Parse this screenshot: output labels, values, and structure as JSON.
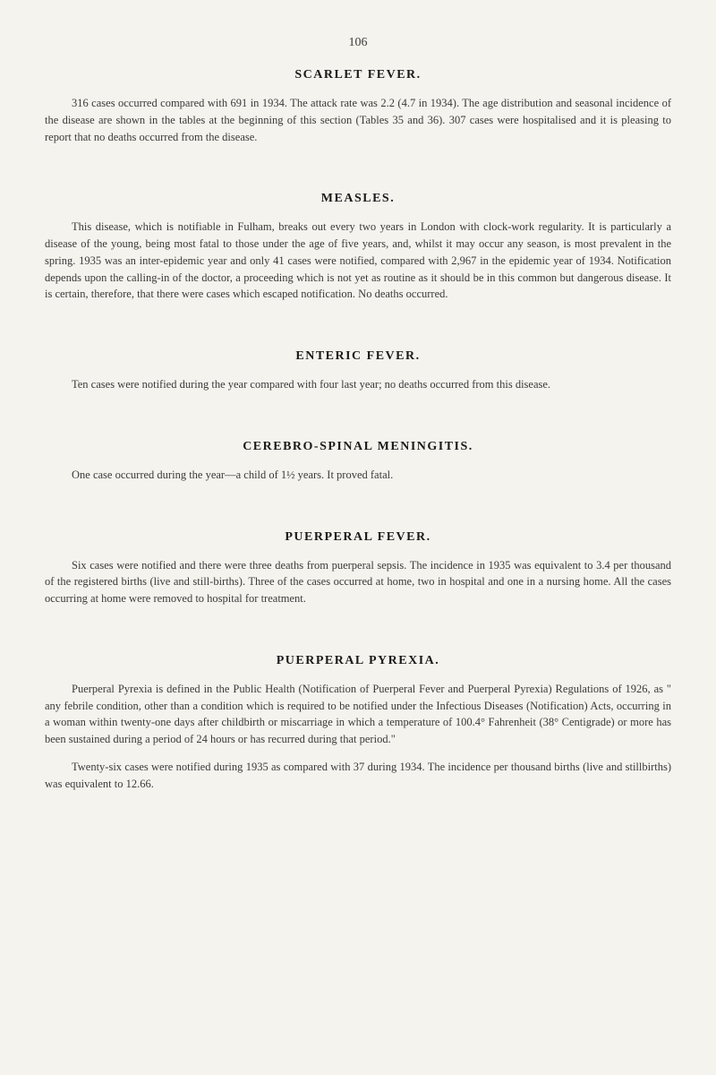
{
  "page_number": "106",
  "sections": [
    {
      "heading": "SCARLET FEVER.",
      "paragraphs": [
        "316 cases occurred compared with 691 in 1934. The attack rate was 2.2 (4.7 in 1934). The age distribution and seasonal incidence of the disease are shown in the tables at the beginning of this section (Tables 35 and 36). 307 cases were hospitalised and it is pleasing to report that no deaths occurred from the disease."
      ]
    },
    {
      "heading": "MEASLES.",
      "paragraphs": [
        "This disease, which is notifiable in Fulham, breaks out every two years in London with clock-work regularity. It is particularly a disease of the young, being most fatal to those under the age of five years, and, whilst it may occur any season, is most prevalent in the spring. 1935 was an inter-epidemic year and only 41 cases were notified, compared with 2,967 in the epidemic year of 1934. Notification depends upon the calling-in of the doctor, a proceeding which is not yet as routine as it should be in this common but dangerous disease. It is certain, therefore, that there were cases which escaped notification. No deaths occurred."
      ]
    },
    {
      "heading": "ENTERIC FEVER.",
      "paragraphs": [
        "Ten cases were notified during the year compared with four last year; no deaths occurred from this disease."
      ]
    },
    {
      "heading": "CEREBRO-SPINAL MENINGITIS.",
      "paragraphs": [
        "One case occurred during the year—a child of 1½ years. It proved fatal."
      ]
    },
    {
      "heading": "PUERPERAL FEVER.",
      "paragraphs": [
        "Six cases were notified and there were three deaths from puerperal sepsis. The incidence in 1935 was equivalent to 3.4 per thousand of the registered births (live and still-births). Three of the cases occurred at home, two in hospital and one in a nursing home. All the cases occurring at home were removed to hospital for treatment."
      ]
    },
    {
      "heading": "PUERPERAL PYREXIA.",
      "paragraphs": [
        "Puerperal Pyrexia is defined in the Public Health (Notification of Puerperal Fever and Puerperal Pyrexia) Regulations of 1926, as \" any febrile condition, other than a condition which is required to be notified under the Infectious Diseases (Notification) Acts, occurring in a woman within twenty-one days after childbirth or miscarriage in which a temperature of 100.4° Fahrenheit (38° Centigrade) or more has been sustained during a period of 24 hours or has recurred during that period.\"",
        "Twenty-six cases were notified during 1935 as compared with 37 during 1934. The incidence per thousand births (live and stillbirths) was equivalent to 12.66."
      ]
    }
  ]
}
